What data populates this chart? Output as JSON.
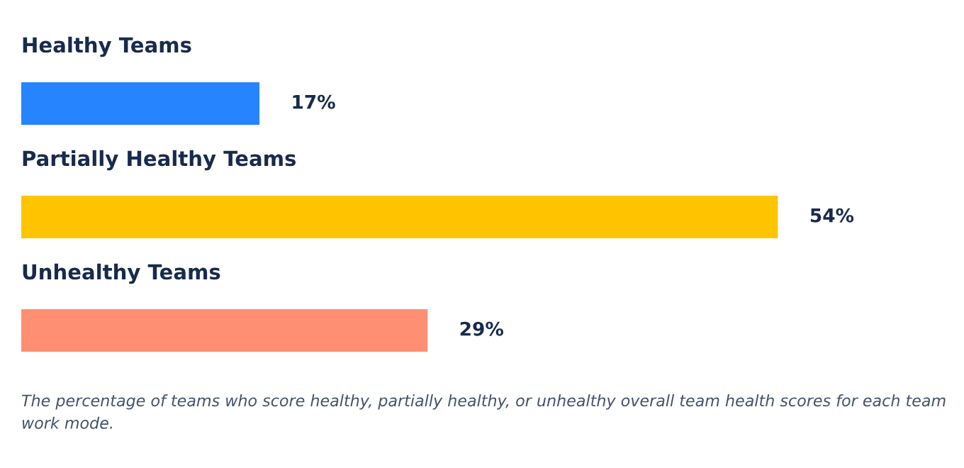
{
  "chart_data": {
    "type": "bar",
    "orientation": "horizontal",
    "categories": [
      "Healthy Teams",
      "Partially Healthy Teams",
      "Unhealthy Teams"
    ],
    "values": [
      17,
      54,
      29
    ],
    "value_labels": [
      "17%",
      "54%",
      "29%"
    ],
    "colors": [
      "#2684ff",
      "#ffc400",
      "#ff8f73"
    ],
    "annotations": [
      "The percentage of teams who score healthy, partially healthy, or unhealthy overall team health scores for each team work mode."
    ]
  }
}
